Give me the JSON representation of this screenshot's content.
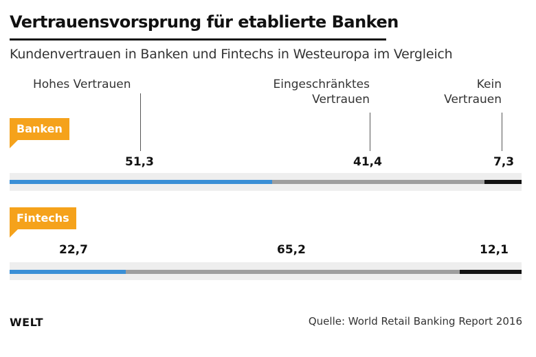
{
  "header": {
    "title": "Vertrauensvorsprung für etablierte Banken",
    "subtitle": "Kundenvertrauen in Banken und Fintechs in Westeuropa im Vergleich"
  },
  "legend_labels": {
    "high": "Hohes Vertrauen",
    "limited_line1": "Eingeschränktes",
    "limited_line2": "Vertrauen",
    "none_line1": "Kein",
    "none_line2": "Vertrauen"
  },
  "colors": {
    "high": "#3a8fd6",
    "limited": "#9e9e9e",
    "none": "#111111",
    "badge": "#f5a21b"
  },
  "chart_data": {
    "type": "bar",
    "stacked": true,
    "orientation": "horizontal",
    "categories": [
      "Banken",
      "Fintechs"
    ],
    "series": [
      {
        "name": "Hohes Vertrauen",
        "values": [
          51.3,
          22.7
        ]
      },
      {
        "name": "Eingeschränktes Vertrauen",
        "values": [
          41.4,
          65.2
        ]
      },
      {
        "name": "Kein Vertrauen",
        "values": [
          7.3,
          12.1
        ]
      }
    ],
    "value_labels": [
      [
        "51,3",
        "41,4",
        "7,3"
      ],
      [
        "22,7",
        "65,2",
        "12,1"
      ]
    ],
    "unit": "%",
    "xlim": [
      0,
      100
    ]
  },
  "footer": {
    "logo": "WELT",
    "source": "Quelle: World Retail Banking Report 2016"
  }
}
